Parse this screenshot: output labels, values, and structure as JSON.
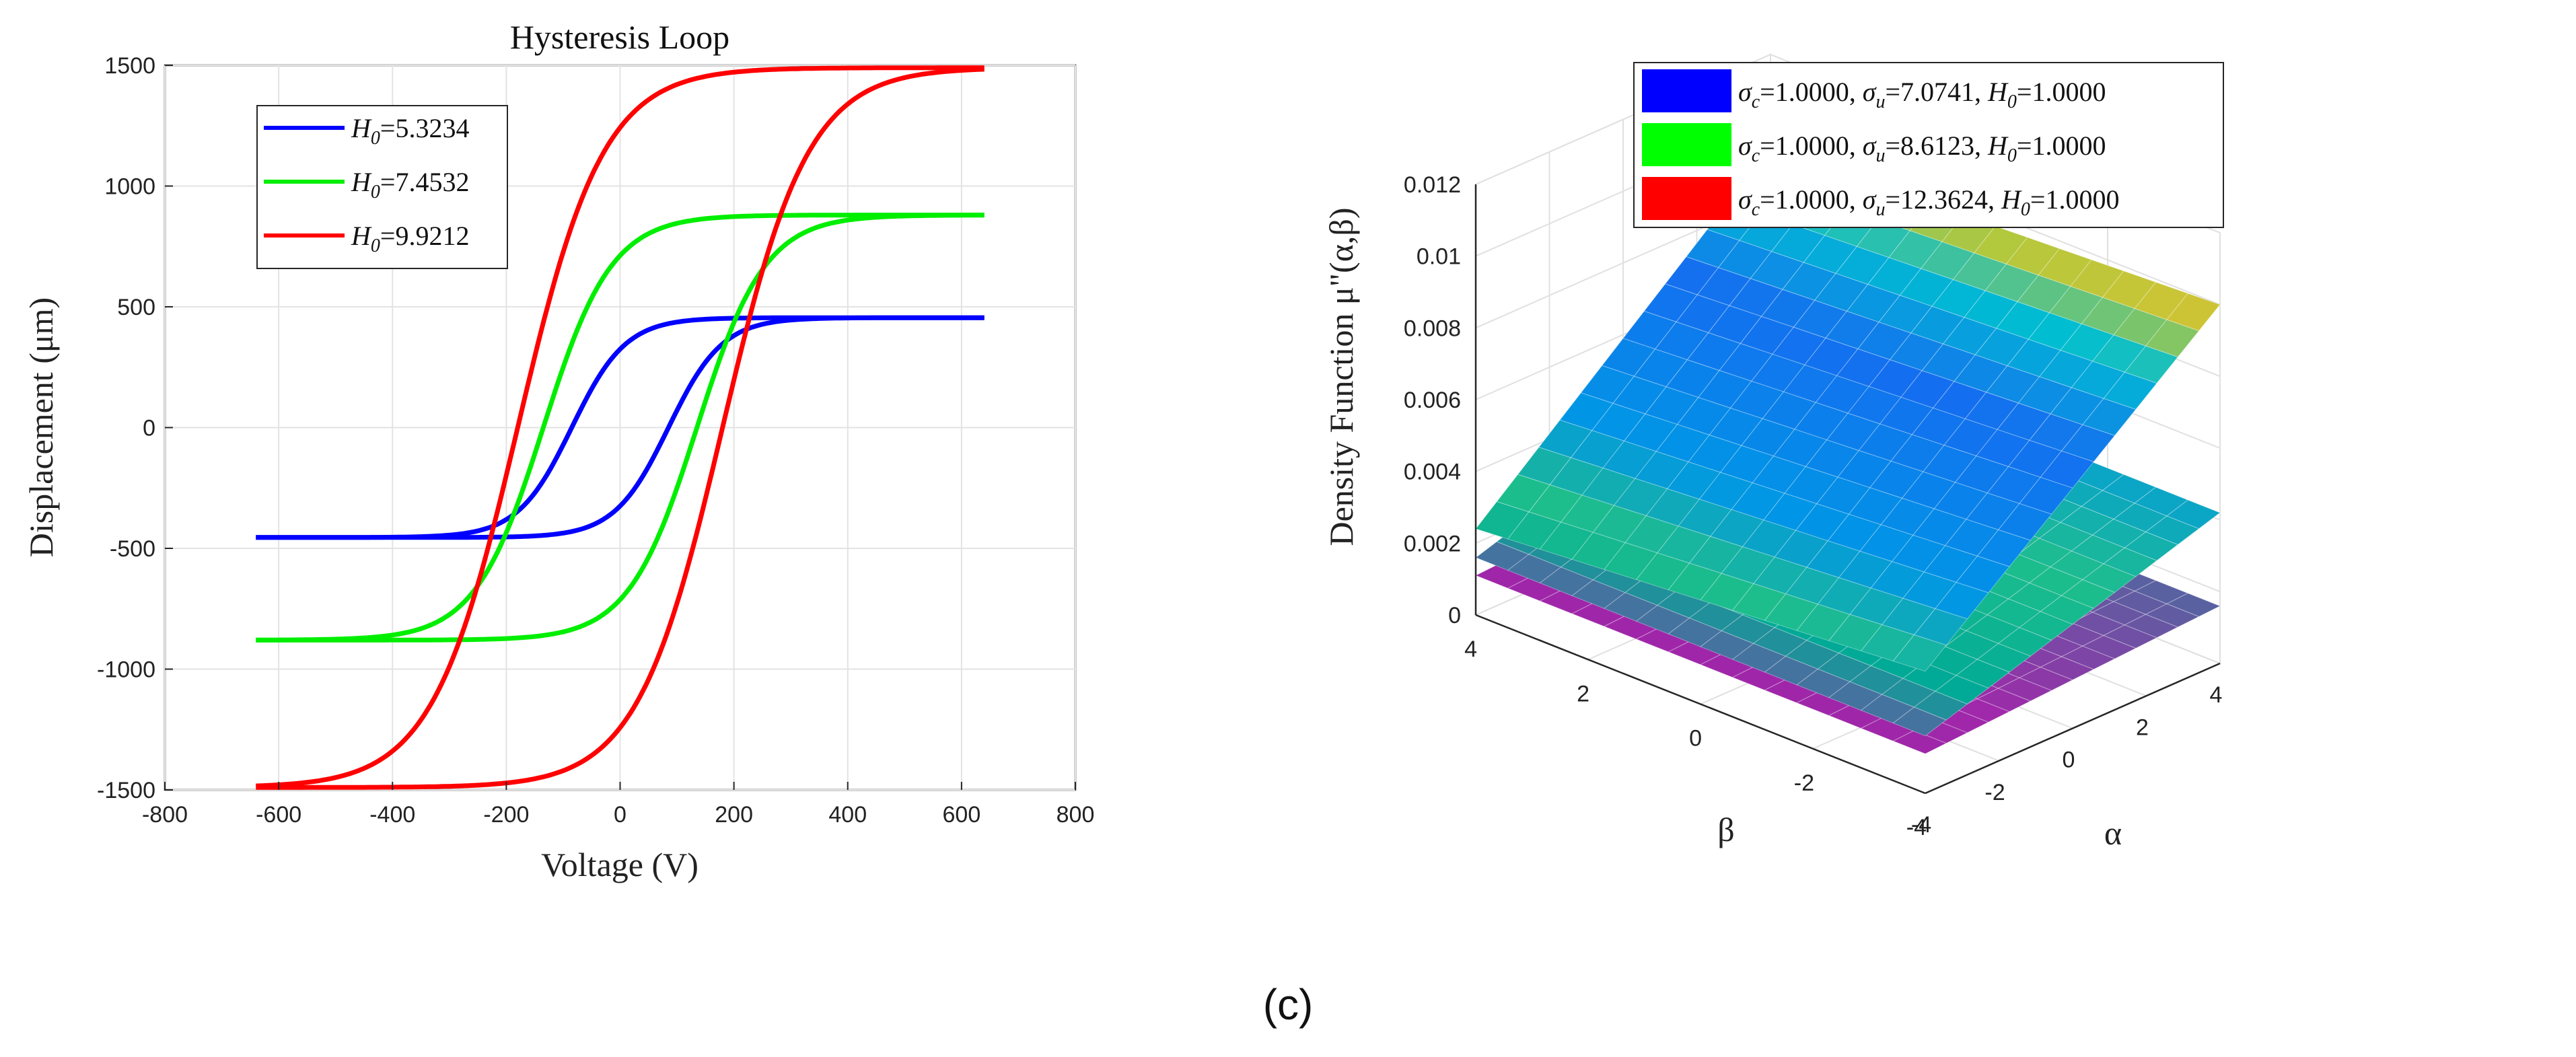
{
  "caption": "(c)",
  "chart_data": [
    {
      "type": "line",
      "title": "Hysteresis Loop",
      "xlabel": "Voltage (V)",
      "ylabel": "Displacement (μm)",
      "xlim": [
        -800,
        800
      ],
      "ylim": [
        -1500,
        1500
      ],
      "xticks": [
        "-800",
        "-600",
        "-400",
        "-200",
        "0",
        "200",
        "400",
        "600",
        "800"
      ],
      "yticks": [
        "-1500",
        "-1000",
        "-500",
        "0",
        "500",
        "1000",
        "1500"
      ],
      "grid": true,
      "legend_position": "top-left",
      "series": [
        {
          "name": "H0=5.3234",
          "legend_var": "H",
          "legend_sub": "0",
          "legend_value": "=5.3234",
          "color": "#0000ff",
          "voltage_range": [
            -640,
            640
          ],
          "amplitude": 455,
          "coercive": 85,
          "width": 95
        },
        {
          "name": "H0=7.4532",
          "legend_var": "H",
          "legend_sub": "0",
          "legend_value": "=7.4532",
          "color": "#00ee00",
          "voltage_range": [
            -640,
            640
          ],
          "amplitude": 880,
          "coercive": 135,
          "width": 120
        },
        {
          "name": "H0=9.9212",
          "legend_var": "H",
          "legend_sub": "0",
          "legend_value": "=9.9212",
          "color": "#ff0000",
          "voltage_range": [
            -640,
            640
          ],
          "amplitude": 1490,
          "coercive": 180,
          "width": 150
        }
      ]
    },
    {
      "type": "surface",
      "zlabel": "Density Function μ\"(α,β)",
      "xlabel": "α",
      "ylabel": "β",
      "alpha_range": [
        -4,
        4
      ],
      "beta_range": [
        -4,
        4
      ],
      "zlim": [
        0,
        0.012
      ],
      "zticks": [
        "0",
        "0.002",
        "0.004",
        "0.006",
        "0.008",
        "0.01",
        "0.012"
      ],
      "alpha_ticks": [
        "-4",
        "-2",
        "0",
        "2",
        "4"
      ],
      "beta_ticks": [
        "-4",
        "-2",
        "0",
        "2",
        "4"
      ],
      "grid": true,
      "legend_position": "top",
      "surfaces": [
        {
          "name": "σc=1.0000, σu=7.0741, H0=1.0000",
          "legend_color": "#0000ff",
          "sigma_c": "1.0000",
          "sigma_u": "7.0741",
          "H0": "1.0000",
          "corner_values": {
            "a_min_b_min": 0.0034,
            "a_min_b_max": 0.0024,
            "a_max_b_min": 0.01,
            "a_max_b_max": 0.0094
          }
        },
        {
          "name": "σc=1.0000, σu=8.6123, H0=1.0000",
          "legend_color": "#00ff00",
          "sigma_c": "1.0000",
          "sigma_u": "8.6123",
          "H0": "1.0000",
          "corner_values": {
            "a_min_b_min": 0.0016,
            "a_min_b_max": 0.0016,
            "a_max_b_min": 0.0042,
            "a_max_b_max": 0.0042
          }
        },
        {
          "name": "σc=1.0000, σu=12.3624, H0=1.0000",
          "legend_color": "#ff0000",
          "sigma_c": "1.0000",
          "sigma_u": "12.3624",
          "H0": "1.0000",
          "corner_values": {
            "a_min_b_min": 0.0011,
            "a_min_b_max": 0.0011,
            "a_max_b_min": 0.0016,
            "a_max_b_max": 0.0016
          }
        }
      ]
    }
  ]
}
